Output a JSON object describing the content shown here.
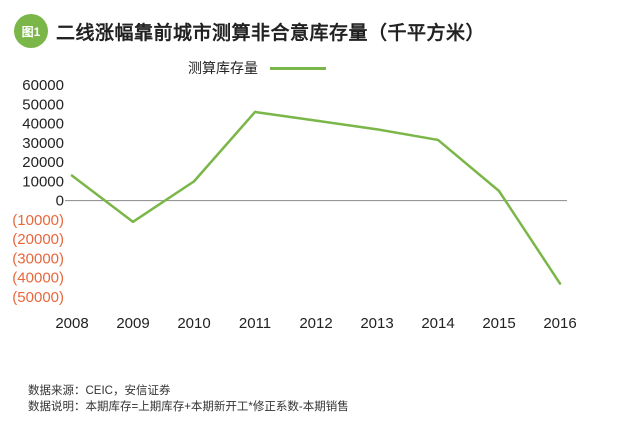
{
  "header": {
    "badge": "图1",
    "title": "二线涨幅靠前城市测算非合意库存量（千平方米）"
  },
  "colors": {
    "accent": "#7ab648",
    "negative_label": "#e8673c",
    "axis": "#555555"
  },
  "chart_data": {
    "type": "line",
    "title": "二线涨幅靠前城市测算非合意库存量（千平方米）",
    "x": [
      "2008",
      "2009",
      "2010",
      "2011",
      "2012",
      "2013",
      "2014",
      "2015",
      "2016"
    ],
    "series": [
      {
        "name": "测算库存量",
        "values": [
          13000,
          -11000,
          10000,
          46000,
          41500,
          37000,
          31500,
          5000,
          -43000
        ]
      }
    ],
    "ylim": [
      -50000,
      60000
    ],
    "yticks": [
      {
        "value": 60000,
        "label": "60000"
      },
      {
        "value": 50000,
        "label": "50000"
      },
      {
        "value": 40000,
        "label": "40000"
      },
      {
        "value": 30000,
        "label": "30000"
      },
      {
        "value": 20000,
        "label": "20000"
      },
      {
        "value": 10000,
        "label": "10000"
      },
      {
        "value": 0,
        "label": "0"
      },
      {
        "value": -10000,
        "label": "(10000)"
      },
      {
        "value": -20000,
        "label": "(20000)"
      },
      {
        "value": -30000,
        "label": "(30000)"
      },
      {
        "value": -40000,
        "label": "(40000)"
      },
      {
        "value": -50000,
        "label": "(50000)"
      }
    ],
    "grid": false,
    "legend": "top-center"
  },
  "footnotes": {
    "source": "数据来源：CEIC，安信证券",
    "note": "数据说明：本期库存=上期库存+本期新开工*修正系数-本期销售"
  }
}
